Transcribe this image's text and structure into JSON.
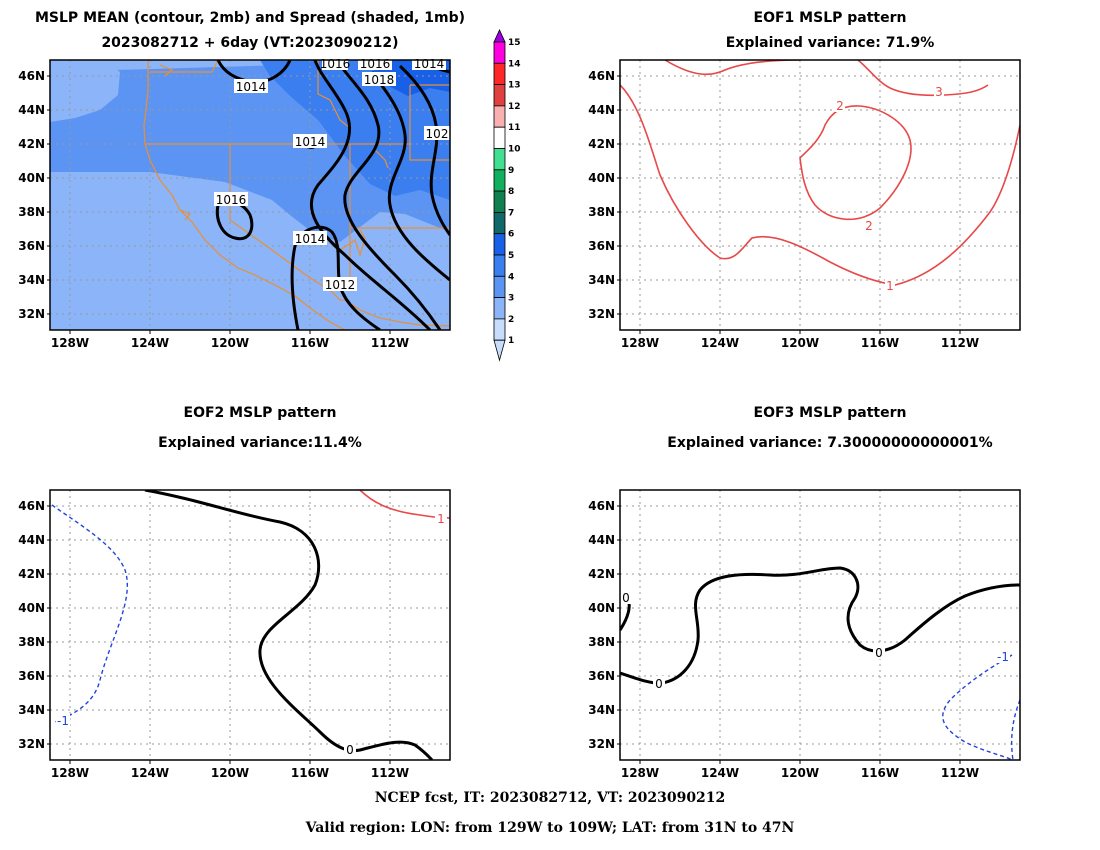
{
  "panel_mean": {
    "title_line1": "MSLP MEAN (contour, 2mb) and Spread (shaded, 1mb)",
    "title_line2": "2023082712 + 6day (VT:2023090212)",
    "contour_labels": [
      "1014",
      "1014",
      "1016",
      "1014",
      "1012",
      "1016",
      "1018",
      "1014",
      "1016",
      "102"
    ]
  },
  "panel_eof1": {
    "title_line1": "EOF1 MSLP pattern",
    "title_line2": "Explained variance: 71.9%",
    "contour_labels": [
      "3",
      "2",
      "2",
      "1"
    ]
  },
  "panel_eof2": {
    "title_line1": "EOF2 MSLP pattern",
    "title_line2": "Explained variance:11.4%",
    "contour_labels": [
      "-1",
      "1",
      "0"
    ]
  },
  "panel_eof3": {
    "title_line1": "EOF3 MSLP pattern",
    "title_line2": "Explained variance: 7.30000000000001%",
    "contour_labels": [
      "0",
      "0",
      "0",
      "-1"
    ]
  },
  "axes": {
    "lat_ticks": [
      "46N",
      "44N",
      "42N",
      "40N",
      "38N",
      "36N",
      "34N",
      "32N"
    ],
    "lon_ticks": [
      "128W",
      "124W",
      "120W",
      "116W",
      "112W"
    ]
  },
  "colorbar": {
    "levels": [
      "15",
      "14",
      "13",
      "12",
      "11",
      "10",
      "9",
      "8",
      "7",
      "6",
      "5",
      "4",
      "3",
      "2",
      "1"
    ],
    "colors": [
      "#a000e0",
      "#ff00e0",
      "#ff2828",
      "#e04040",
      "#f8b0b0",
      "#ffffff",
      "#40e090",
      "#10b060",
      "#108050",
      "#106868",
      "#1860e8",
      "#3a7ef0",
      "#5c94f4",
      "#8cb4f8",
      "#c8dcfc"
    ]
  },
  "footer": {
    "line1": "NCEP fcst, IT: 2023082712, VT: 2023090212",
    "line2": "Valid region: LON: from 129W to 109W; LAT: from 31N to 47N"
  }
}
